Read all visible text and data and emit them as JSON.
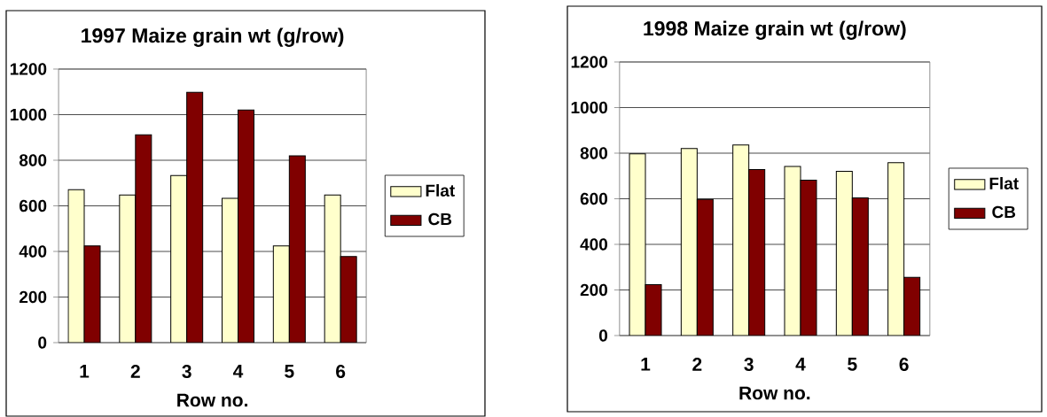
{
  "chart_data": [
    {
      "type": "bar",
      "title": "1997 Maize grain wt (g/row)",
      "xlabel": "Row no.",
      "categories": [
        "1",
        "2",
        "3",
        "4",
        "5",
        "6"
      ],
      "series": [
        {
          "name": "Flat",
          "color": "#ffffcc",
          "values": [
            671,
            648,
            733,
            633,
            424,
            648
          ]
        },
        {
          "name": "CB",
          "color": "#800000",
          "values": [
            424,
            912,
            1098,
            1020,
            819,
            378
          ]
        }
      ],
      "ylim": [
        0,
        1200
      ],
      "yticks": [
        0,
        200,
        400,
        600,
        800,
        1000,
        1200
      ],
      "grid": "y",
      "legend": "right"
    },
    {
      "type": "bar",
      "title": "1998 Maize grain wt (g/row)",
      "xlabel": "Row no.",
      "categories": [
        "1",
        "2",
        "3",
        "4",
        "5",
        "6"
      ],
      "series": [
        {
          "name": "Flat",
          "color": "#ffffcc",
          "values": [
            797,
            820,
            836,
            742,
            720,
            758
          ]
        },
        {
          "name": "CB",
          "color": "#800000",
          "values": [
            223,
            597,
            728,
            682,
            604,
            255
          ]
        }
      ],
      "ylim": [
        0,
        1200
      ],
      "yticks": [
        0,
        200,
        400,
        600,
        800,
        1000,
        1200
      ],
      "grid": "y",
      "legend": "right"
    }
  ]
}
